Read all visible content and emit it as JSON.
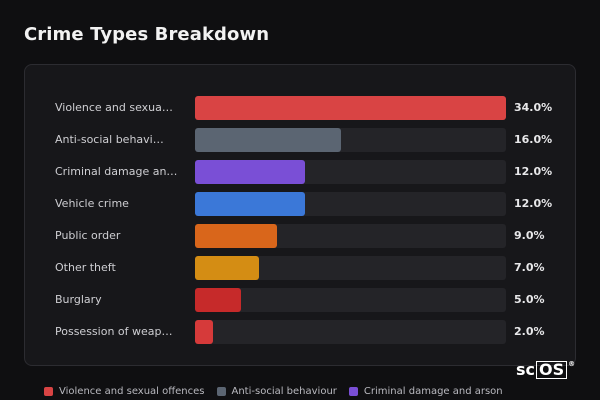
{
  "title": "Crime Types Breakdown",
  "rows": [
    {
      "label": "Violence and sexua…",
      "pct": "34.0%",
      "value": 34.0,
      "color": "#d94444"
    },
    {
      "label": "Anti-social behavi…",
      "pct": "16.0%",
      "value": 16.0,
      "color": "#5b6572"
    },
    {
      "label": "Criminal damage an…",
      "pct": "12.0%",
      "value": 12.0,
      "color": "#7a4fd6"
    },
    {
      "label": "Vehicle crime",
      "pct": "12.0%",
      "value": 12.0,
      "color": "#3b78d8"
    },
    {
      "label": "Public order",
      "pct": "9.0%",
      "value": 9.0,
      "color": "#d9661b"
    },
    {
      "label": "Other theft",
      "pct": "7.0%",
      "value": 7.0,
      "color": "#d48d14"
    },
    {
      "label": "Burglary",
      "pct": "5.0%",
      "value": 5.0,
      "color": "#c62a2a"
    },
    {
      "label": "Possession of weap…",
      "pct": "2.0%",
      "value": 2.0,
      "color": "#d63a3a"
    }
  ],
  "legend": [
    {
      "label": "Violence and sexual offences",
      "color": "#d94444"
    },
    {
      "label": "Anti-social behaviour",
      "color": "#5b6572"
    },
    {
      "label": "Criminal damage and arson",
      "color": "#7a4fd6"
    }
  ],
  "logo": {
    "prefix": "sc",
    "boxed": "OS",
    "mark": "®"
  }
}
